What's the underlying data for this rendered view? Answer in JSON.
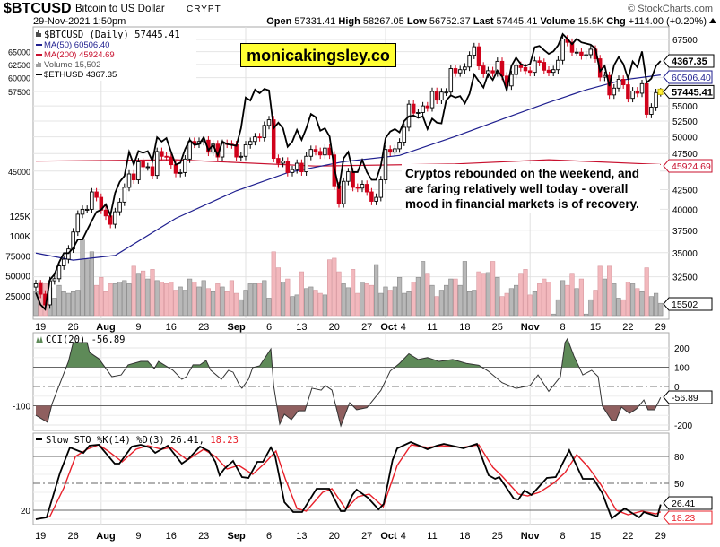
{
  "header": {
    "symbol": "$BTCUSD",
    "name": "Bitcoin to US Dollar",
    "exchange": "CRYPT",
    "copyright": "© StockCharts.com",
    "datetime": "29-Nov-2021 1:50pm",
    "open_label": "Open",
    "open": "57331.41",
    "high_label": "High",
    "high": "58267.05",
    "low_label": "Low",
    "low": "56752.37",
    "last_label": "Last",
    "last": "57445.41",
    "volume_label": "Volume",
    "volume": "15.5K",
    "chg_label": "Chg",
    "chg": "+114.00 (+0.20%)"
  },
  "legend": {
    "main": "$BTCUSD (Daily) 57445.41",
    "ma50": "MA(50) 60506.40",
    "ma200": "MA(200) 45924.69",
    "volume": "Volume 15,502",
    "eth": "$ETHUSD 4367.35"
  },
  "watermark": "monicakingsley.co",
  "annotation": "Cryptos rebounded on the weekend, and are faring relatively well today - overall mood in financial markets is of recovery.",
  "cci_legend": "CCI(20) -56.89",
  "sto_legend": "Slow STO %K(14) %D(3) 26.41,",
  "sto_d_value": "18.23",
  "tags": {
    "eth": "4367.35",
    "ma50": "60506.40",
    "last": "57445.41",
    "ma200": "45924.69",
    "volume": "15502",
    "cci": "-56.89",
    "sto_k": "26.41",
    "sto_d": "18.23"
  },
  "colors": {
    "up": "#000000",
    "down": "#d0021b",
    "ma50": "#1f1f8f",
    "ma200": "#c8102e",
    "vol_up": "#b8b8b8",
    "vol_down": "#f2b8bd",
    "cci_pos": "#5e8a58",
    "cci_neg": "#8f5f5f",
    "sto_d": "#e8202a"
  },
  "chart_data": {
    "type": "candlestick",
    "title": "$BTCUSD (Daily)",
    "start_date": "2021-07-18",
    "end_date": "2021-11-29",
    "price_axis": {
      "scale": "log",
      "ticks": [
        32500,
        35000,
        37500,
        40000,
        42500,
        45000,
        47500,
        50000,
        52500,
        55000,
        57500,
        60000,
        62500,
        65000,
        67500
      ]
    },
    "volume_axis": {
      "ticks": [
        {
          "v": 25000,
          "label": "25000"
        },
        {
          "v": 50000,
          "label": "50000"
        },
        {
          "v": 75000,
          "label": "75000"
        },
        {
          "v": 100000,
          "label": "100K"
        },
        {
          "v": 125000,
          "label": "125K"
        }
      ]
    },
    "x_labels": [
      {
        "day": 1,
        "label": "19"
      },
      {
        "day": 8,
        "label": "26"
      },
      {
        "day": 15,
        "label": "Aug",
        "bold": true
      },
      {
        "day": 22,
        "label": "9"
      },
      {
        "day": 29,
        "label": "16"
      },
      {
        "day": 36,
        "label": "23"
      },
      {
        "day": 43,
        "label": "Sep",
        "bold": true
      },
      {
        "day": 50,
        "label": "6"
      },
      {
        "day": 57,
        "label": "13"
      },
      {
        "day": 64,
        "label": "20"
      },
      {
        "day": 71,
        "label": "27"
      },
      {
        "day": 76,
        "label": "Oct",
        "bold": true
      },
      {
        "day": 78.6,
        "label": "4"
      },
      {
        "day": 85,
        "label": "11"
      },
      {
        "day": 92,
        "label": "18"
      },
      {
        "day": 99,
        "label": "25"
      },
      {
        "day": 106,
        "label": "Nov",
        "bold": true
      },
      {
        "day": 113,
        "label": "8"
      },
      {
        "day": 120,
        "label": "15"
      },
      {
        "day": 127,
        "label": "22"
      },
      {
        "day": 134,
        "label": "29"
      }
    ],
    "month_lines": [
      14,
      45,
      75,
      106
    ],
    "close": [
      31800,
      30800,
      29800,
      32100,
      32300,
      33600,
      34300,
      35400,
      37300,
      39400,
      40000,
      40000,
      42200,
      41500,
      39900,
      39200,
      38200,
      39700,
      40900,
      42800,
      44600,
      43800,
      46300,
      45600,
      45600,
      44400,
      47800,
      47100,
      47000,
      45900,
      44700,
      44800,
      46700,
      49300,
      48900,
      49300,
      49500,
      47700,
      48900,
      47000,
      49000,
      48900,
      48800,
      47000,
      47100,
      48800,
      49300,
      50000,
      49900,
      51800,
      52700,
      46800,
      46100,
      46400,
      44800,
      45200,
      46100,
      44900,
      47100,
      48100,
      47800,
      47300,
      48300,
      47300,
      43000,
      40700,
      43600,
      44900,
      42800,
      42700,
      43200,
      42200,
      41000,
      41500,
      43800,
      48100,
      47700,
      48200,
      49200,
      51500,
      55300,
      53800,
      53900,
      55000,
      54700,
      57500,
      56000,
      57400,
      57400,
      61700,
      60900,
      61500,
      62000,
      64300,
      66000,
      62200,
      60700,
      61300,
      60900,
      63100,
      60300,
      58500,
      60600,
      62300,
      61900,
      61300,
      61000,
      63200,
      62900,
      61400,
      61000,
      61500,
      63300,
      67600,
      66900,
      64900,
      64900,
      64200,
      64400,
      65500,
      63600,
      60100,
      60400,
      56900,
      58100,
      59700,
      58700,
      56300,
      57600,
      57200,
      58900,
      53600,
      54800,
      57300,
      57445.41
    ],
    "volume": [
      30000,
      42000,
      40000,
      35000,
      22000,
      38000,
      30000,
      28000,
      30000,
      32000,
      95000,
      70000,
      80000,
      38000,
      48000,
      30000,
      40000,
      40000,
      42000,
      44000,
      40000,
      62000,
      52000,
      56000,
      46000,
      58000,
      44000,
      42000,
      40000,
      42000,
      32000,
      36000,
      32000,
      46000,
      42000,
      36000,
      44000,
      34000,
      30000,
      40000,
      36000,
      30000,
      44000,
      28000,
      20000,
      32000,
      40000,
      40000,
      40000,
      44000,
      22000,
      80000,
      60000,
      42000,
      46000,
      24000,
      26000,
      55000,
      34000,
      36000,
      32000,
      28000,
      26000,
      70000,
      72000,
      55000,
      40000,
      35000,
      58000,
      28000,
      42000,
      40000,
      38000,
      64000,
      28000,
      36000,
      32000,
      36000,
      48000,
      28000,
      30000,
      42000,
      48000,
      68000,
      52000,
      38000,
      24000,
      32000,
      38000,
      46000,
      46000,
      38000,
      68000,
      30000,
      32000,
      55000,
      52000,
      54000,
      68000,
      48000,
      24000,
      28000,
      34000,
      38000,
      52000,
      58000,
      26000,
      30000,
      40000,
      46000,
      42000,
      2000,
      20000,
      44000,
      38000,
      52000,
      34000,
      46000,
      2000,
      20000,
      32000,
      62000,
      46000,
      62000,
      40000,
      22000,
      20000,
      42000,
      40000,
      34000,
      30000,
      60000,
      24000,
      28000,
      15502
    ],
    "eth": [
      1900,
      1820,
      1790,
      1990,
      2030,
      2120,
      2190,
      2190,
      2230,
      2300,
      2300,
      2380,
      2460,
      2540,
      2560,
      2610,
      2510,
      2720,
      2830,
      2890,
      3150,
      3010,
      3160,
      3140,
      3160,
      3050,
      3320,
      3270,
      3310,
      3150,
      3010,
      3030,
      3180,
      3290,
      3230,
      3240,
      3320,
      3170,
      3230,
      3110,
      3270,
      3240,
      3230,
      3220,
      3430,
      3830,
      3790,
      3940,
      3890,
      3950,
      3930,
      3430,
      3500,
      3430,
      3210,
      3270,
      3410,
      3290,
      3430,
      3610,
      3570,
      3400,
      3430,
      3330,
      2970,
      2760,
      3080,
      3150,
      2930,
      2930,
      3060,
      2930,
      2850,
      2850,
      3000,
      3310,
      3390,
      3420,
      3380,
      3520,
      3580,
      3590,
      3560,
      3580,
      3420,
      3550,
      3500,
      3490,
      3790,
      3860,
      3830,
      3850,
      3750,
      3880,
      4160,
      4060,
      3970,
      4170,
      4080,
      4220,
      4130,
      3930,
      4290,
      4420,
      4320,
      4290,
      4320,
      4590,
      4610,
      4540,
      4480,
      4520,
      4620,
      4810,
      4730,
      4640,
      4730,
      4670,
      4650,
      4630,
      4570,
      4210,
      4290,
      3990,
      4300,
      4430,
      4320,
      4100,
      4360,
      4270,
      4520,
      4040,
      4100,
      4290,
      4367.35
    ],
    "ma50": [
      [
        0,
        34950
      ],
      [
        8,
        34200
      ],
      [
        17,
        34700
      ],
      [
        30,
        38900
      ],
      [
        43,
        42350
      ],
      [
        54,
        44780
      ],
      [
        66,
        46330
      ],
      [
        78,
        47220
      ],
      [
        90,
        50080
      ],
      [
        100,
        52800
      ],
      [
        110,
        55600
      ],
      [
        118,
        57800
      ],
      [
        126,
        59600
      ],
      [
        134,
        60506.4
      ]
    ],
    "ma200": [
      [
        0,
        46400
      ],
      [
        30,
        46600
      ],
      [
        60,
        45700
      ],
      [
        90,
        46000
      ],
      [
        110,
        46600
      ],
      [
        134,
        45924.69
      ]
    ],
    "cci": {
      "name": "CCI(20)",
      "levels": [
        200,
        100,
        0,
        -100,
        -200
      ],
      "points": [
        [
          0,
          -149
        ],
        [
          2.5,
          -186
        ],
        [
          3.5,
          -88
        ],
        [
          7,
          130
        ],
        [
          8,
          228
        ],
        [
          11,
          228
        ],
        [
          11.5,
          177
        ],
        [
          13.5,
          144
        ],
        [
          16.3,
          51
        ],
        [
          18.3,
          60
        ],
        [
          19.8,
          112
        ],
        [
          22.5,
          130
        ],
        [
          24,
          130
        ],
        [
          25.4,
          93
        ],
        [
          26.3,
          130
        ],
        [
          29.4,
          84
        ],
        [
          31.3,
          37
        ],
        [
          32.3,
          51
        ],
        [
          33.7,
          112
        ],
        [
          35.2,
          112
        ],
        [
          36.5,
          135
        ],
        [
          37.5,
          84
        ],
        [
          39.8,
          37
        ],
        [
          41.3,
          84
        ],
        [
          42.3,
          74
        ],
        [
          43.7,
          5
        ],
        [
          44.2,
          -9
        ],
        [
          45.6,
          37
        ],
        [
          46.5,
          98
        ],
        [
          48,
          107
        ],
        [
          50.4,
          195
        ],
        [
          51,
          5
        ],
        [
          52.3,
          -195
        ],
        [
          53.3,
          -144
        ],
        [
          54.8,
          -172
        ],
        [
          56.3,
          -126
        ],
        [
          57.7,
          -126
        ],
        [
          59.2,
          -9
        ],
        [
          61.2,
          -19
        ],
        [
          62.1,
          5
        ],
        [
          63.5,
          -19
        ],
        [
          65.4,
          -205
        ],
        [
          67.3,
          -84
        ],
        [
          68.8,
          -121
        ],
        [
          71,
          -110
        ],
        [
          74,
          -20
        ],
        [
          76,
          80
        ],
        [
          78,
          120
        ],
        [
          80,
          170
        ],
        [
          82,
          140
        ],
        [
          84,
          150
        ],
        [
          86.5,
          130
        ],
        [
          89.4,
          140
        ],
        [
          92.3,
          120
        ],
        [
          95,
          110
        ],
        [
          97,
          80
        ],
        [
          100,
          20
        ],
        [
          103,
          -10
        ],
        [
          106,
          5
        ],
        [
          107.7,
          60
        ],
        [
          110,
          -25
        ],
        [
          112.5,
          51
        ],
        [
          113.5,
          228
        ],
        [
          114,
          247
        ],
        [
          115.4,
          158
        ],
        [
          117.3,
          60
        ],
        [
          119.2,
          84
        ],
        [
          120.6,
          51
        ],
        [
          121.5,
          -102
        ],
        [
          123.5,
          -177
        ],
        [
          124.4,
          -177
        ],
        [
          125.6,
          -107
        ],
        [
          127.3,
          -140
        ],
        [
          128.8,
          -116
        ],
        [
          130.4,
          -70
        ],
        [
          131.3,
          -121
        ],
        [
          132.7,
          -121
        ],
        [
          134,
          -56.89
        ]
      ]
    },
    "sto": {
      "name": "Slow STO %K(14) %D(3)",
      "levels": [
        80,
        50,
        20
      ],
      "k": [
        [
          0,
          10
        ],
        [
          2.3,
          12
        ],
        [
          5.2,
          62
        ],
        [
          7.3,
          90
        ],
        [
          10.2,
          84
        ],
        [
          11.5,
          92
        ],
        [
          13.5,
          93
        ],
        [
          16.9,
          72
        ],
        [
          17.9,
          72
        ],
        [
          20.6,
          91
        ],
        [
          22.5,
          93
        ],
        [
          24.4,
          90
        ],
        [
          25.6,
          84
        ],
        [
          28.3,
          92
        ],
        [
          31.3,
          72
        ],
        [
          32.7,
          77
        ],
        [
          35.2,
          91
        ],
        [
          37.1,
          86
        ],
        [
          38.5,
          74
        ],
        [
          39.4,
          59
        ],
        [
          40.4,
          66
        ],
        [
          42.3,
          75
        ],
        [
          44.2,
          57
        ],
        [
          45.6,
          56
        ],
        [
          47.5,
          74
        ],
        [
          48.7,
          74
        ],
        [
          50.4,
          90
        ],
        [
          51.3,
          81
        ],
        [
          53.3,
          29
        ],
        [
          55.2,
          18
        ],
        [
          57.1,
          18
        ],
        [
          60.2,
          44
        ],
        [
          62.9,
          44
        ],
        [
          65.4,
          19
        ],
        [
          66.3,
          19
        ],
        [
          67.9,
          37
        ],
        [
          68.8,
          43
        ],
        [
          71.2,
          34
        ],
        [
          73.5,
          21
        ],
        [
          74.6,
          27
        ],
        [
          76.5,
          76
        ],
        [
          77.5,
          89
        ],
        [
          80.4,
          96
        ],
        [
          84,
          88
        ],
        [
          86,
          92
        ],
        [
          87.5,
          94
        ],
        [
          91.7,
          89
        ],
        [
          94.6,
          94
        ],
        [
          97.1,
          59
        ],
        [
          98.5,
          55
        ],
        [
          99.4,
          57
        ],
        [
          102.5,
          33
        ],
        [
          103.5,
          32
        ],
        [
          104.8,
          42
        ],
        [
          106.3,
          37
        ],
        [
          109.6,
          56
        ],
        [
          111.5,
          57
        ],
        [
          114.4,
          87
        ],
        [
          117.3,
          55
        ],
        [
          119.6,
          55
        ],
        [
          121.5,
          39
        ],
        [
          123.5,
          11
        ],
        [
          126.3,
          22
        ],
        [
          129.4,
          12
        ],
        [
          130.4,
          18
        ],
        [
          133.3,
          13
        ],
        [
          134,
          26.41
        ]
      ],
      "d": [
        [
          0,
          10
        ],
        [
          3,
          13
        ],
        [
          6,
          45
        ],
        [
          8.5,
          80
        ],
        [
          11,
          88
        ],
        [
          13.5,
          93
        ],
        [
          15.5,
          86
        ],
        [
          18.5,
          74
        ],
        [
          21.5,
          88
        ],
        [
          24,
          92
        ],
        [
          27,
          88
        ],
        [
          29,
          90
        ],
        [
          32.5,
          76
        ],
        [
          36,
          88
        ],
        [
          38.5,
          80
        ],
        [
          41,
          66
        ],
        [
          43.5,
          70
        ],
        [
          46.5,
          60
        ],
        [
          49,
          72
        ],
        [
          51.5,
          86
        ],
        [
          53.5,
          55
        ],
        [
          56,
          22
        ],
        [
          58,
          19
        ],
        [
          61.5,
          40
        ],
        [
          63.5,
          44
        ],
        [
          66.5,
          21
        ],
        [
          69,
          35
        ],
        [
          71.5,
          38
        ],
        [
          74.5,
          24
        ],
        [
          77.5,
          70
        ],
        [
          80.5,
          93
        ],
        [
          84,
          90
        ],
        [
          87,
          92
        ],
        [
          91.5,
          90
        ],
        [
          95,
          93
        ],
        [
          98,
          68
        ],
        [
          100,
          58
        ],
        [
          103.5,
          38
        ],
        [
          105.5,
          36
        ],
        [
          108,
          40
        ],
        [
          111,
          50
        ],
        [
          113.5,
          62
        ],
        [
          116,
          82
        ],
        [
          118.5,
          68
        ],
        [
          121,
          50
        ],
        [
          124.5,
          20
        ],
        [
          127,
          15
        ],
        [
          130,
          19
        ],
        [
          133,
          16
        ],
        [
          134,
          18.23
        ]
      ]
    }
  }
}
